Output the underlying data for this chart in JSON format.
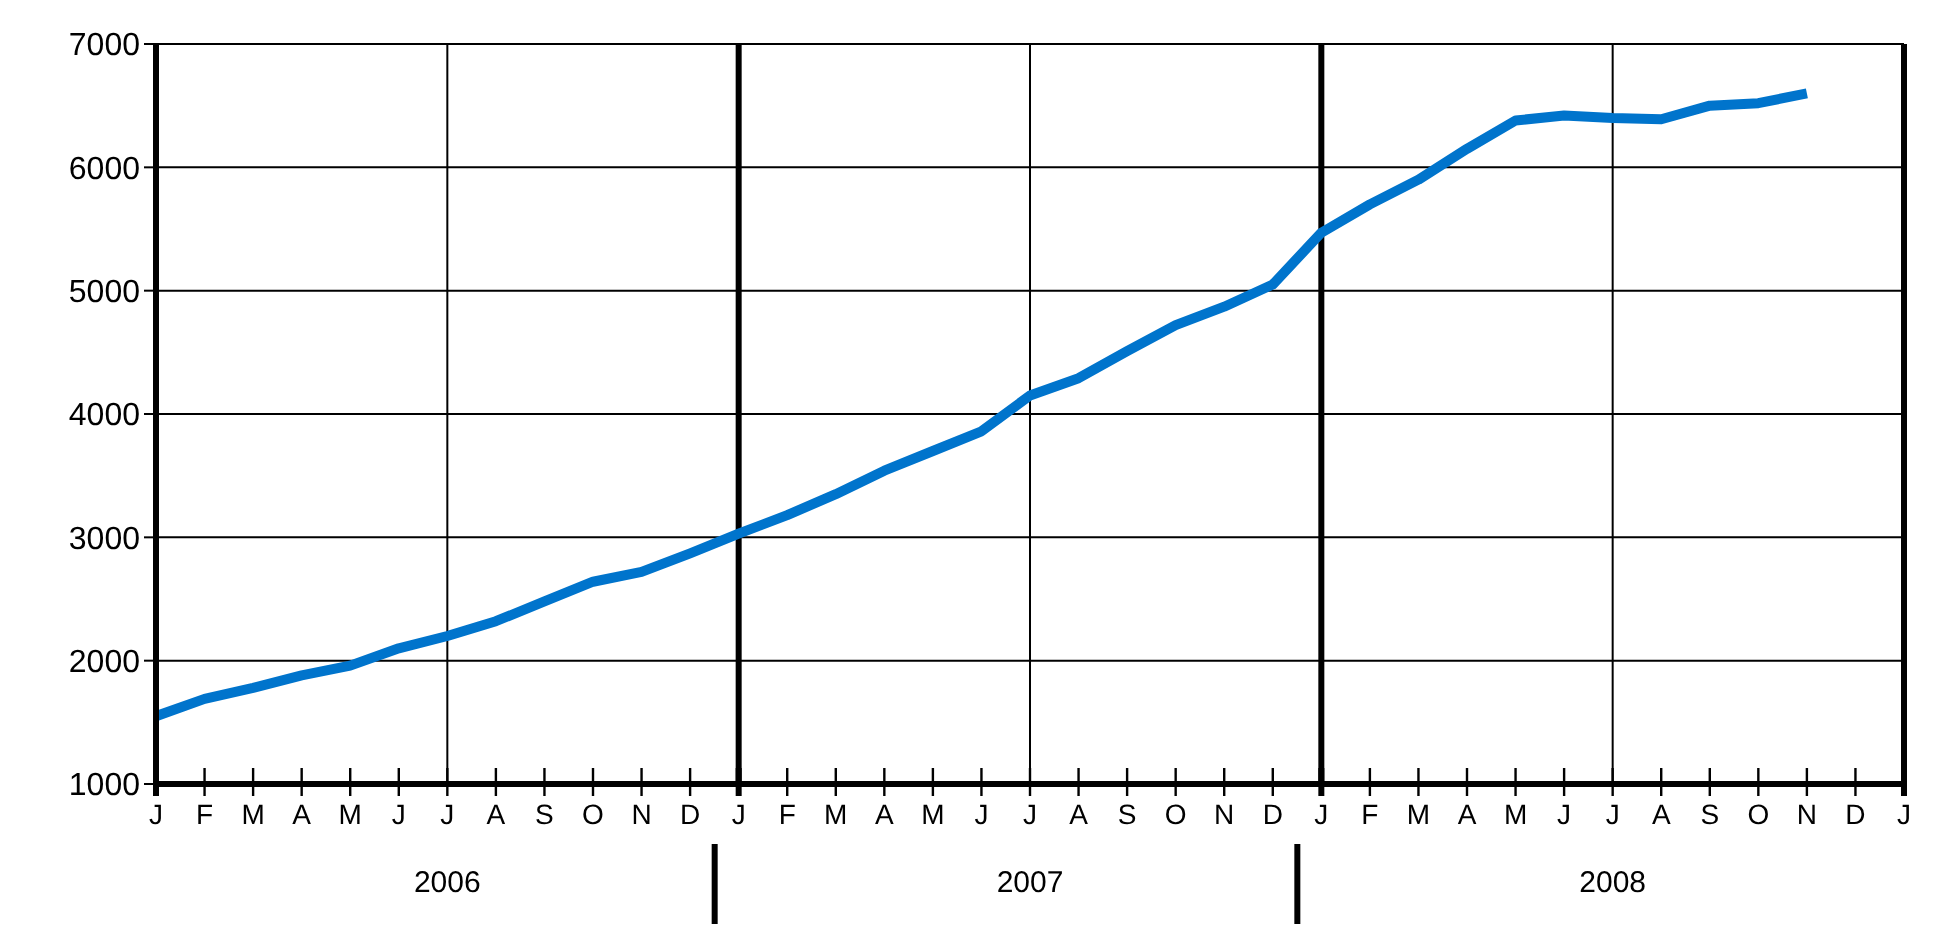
{
  "chart_data": {
    "type": "line",
    "categories": [
      "J",
      "F",
      "M",
      "A",
      "M",
      "J",
      "J",
      "A",
      "S",
      "O",
      "N",
      "D",
      "J",
      "F",
      "M",
      "A",
      "M",
      "J",
      "J",
      "A",
      "S",
      "O",
      "N",
      "D",
      "J",
      "F",
      "M",
      "A",
      "M",
      "J",
      "J",
      "A",
      "S",
      "O",
      "N",
      "D",
      "J"
    ],
    "series": [
      {
        "color": "#0074cc",
        "values": [
          1550,
          1690,
          1780,
          1880,
          1960,
          2100,
          2200,
          2320,
          2480,
          2640,
          2720,
          2870,
          3030,
          3180,
          3350,
          3540,
          3700,
          3860,
          4150,
          4290,
          4510,
          4720,
          4870,
          5050,
          5470,
          5700,
          5900,
          6150,
          6380,
          6420,
          6400,
          6390,
          6500,
          6520,
          6600,
          null,
          null
        ]
      }
    ],
    "ylim": [
      1000,
      7000
    ],
    "yticks": [
      1000,
      2000,
      3000,
      4000,
      5000,
      6000,
      7000
    ],
    "grid": true,
    "marker": "none",
    "line_style": "solid",
    "annotations": [
      "2006",
      "2007",
      "2008"
    ]
  }
}
